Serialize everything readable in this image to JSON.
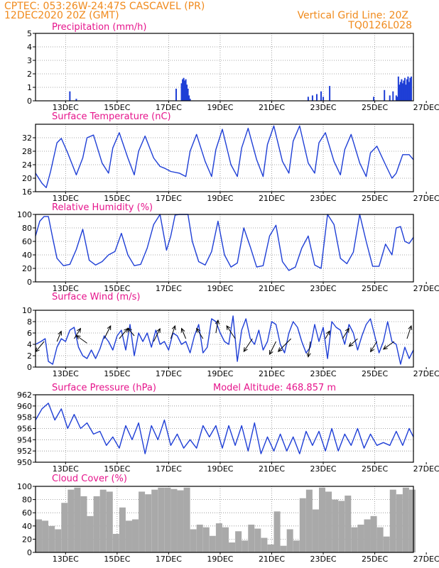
{
  "header": {
    "line1_left": "CPTEC:   053:26W-24:47S   CASCAVEL (PR)",
    "line2_left": "12DEC2020 20Z (GMT)",
    "line2_right": "Vertical Grid Line: 20Z",
    "line3_right": "TQ0126L028"
  },
  "colors": {
    "header": "#f08a1c",
    "title": "#e6158c",
    "series": "#1f3fd6",
    "bars": "#1f3fd6",
    "cloud": "#a9a9a9",
    "grid": "#8c8c8c",
    "arrows": "#000000"
  },
  "chart_data": [
    {
      "type": "bar",
      "title": "Precipitation (mm/h)",
      "ylim": [
        0,
        5
      ],
      "yticks": [
        "0",
        "1",
        "2",
        "3",
        "4",
        "5"
      ],
      "xticks": [
        "13DEC",
        "15DEC",
        "17DEC",
        "19DEC",
        "21DEC",
        "23DEC",
        "25DEC",
        "27DEC"
      ],
      "xlim_hours": [
        0,
        352
      ],
      "x_hours": [
        32,
        38,
        131,
        136,
        137,
        138,
        139,
        140,
        141,
        142,
        143,
        144,
        254,
        258,
        262,
        266,
        268,
        274,
        315,
        325,
        330,
        333,
        336,
        337,
        338,
        339,
        340,
        341,
        342,
        343,
        344,
        345,
        346,
        347,
        348,
        349,
        350
      ],
      "values": [
        0.7,
        0.15,
        0.9,
        1.3,
        1.6,
        1.7,
        1.5,
        1.6,
        1.2,
        0.9,
        0.4,
        0.15,
        0.3,
        0.4,
        0.5,
        0.7,
        0.3,
        1.1,
        0.3,
        0.8,
        0.4,
        0.7,
        0.4,
        0.3,
        1.8,
        1.2,
        1.4,
        1.6,
        1.3,
        1.5,
        1.7,
        1.2,
        1.6,
        1.8,
        1.4,
        1.7,
        1.8
      ],
      "grid": true
    },
    {
      "type": "line",
      "title": "Surface Temperature (nC)",
      "ylim": [
        16,
        36
      ],
      "yticks": [
        "16",
        "20",
        "24",
        "28",
        "32"
      ],
      "xticks": [
        "13DEC",
        "15DEC",
        "17DEC",
        "19DEC",
        "21DEC",
        "23DEC",
        "25DEC",
        "27DEC"
      ],
      "xlim_hours": [
        0,
        352
      ],
      "x_hours": [
        0,
        6,
        10,
        14,
        20,
        24,
        30,
        38,
        44,
        48,
        54,
        62,
        68,
        72,
        78,
        86,
        92,
        96,
        102,
        110,
        116,
        120,
        126,
        134,
        140,
        144,
        150,
        158,
        164,
        168,
        174,
        182,
        188,
        192,
        198,
        206,
        212,
        216,
        222,
        230,
        236,
        240,
        246,
        254,
        260,
        264,
        270,
        278,
        284,
        288,
        294,
        302,
        308,
        312,
        318,
        326,
        332,
        336,
        342,
        348,
        352
      ],
      "y_values": [
        21.5,
        18.5,
        17.2,
        22,
        30.5,
        31.8,
        27.5,
        21,
        26,
        32,
        32.8,
        24.5,
        21.5,
        29,
        33.5,
        26,
        21,
        28,
        32.5,
        26,
        23.5,
        23,
        22,
        21.5,
        20.5,
        28,
        33,
        25,
        20.5,
        28.5,
        34.5,
        24,
        20.5,
        29,
        34.8,
        25.5,
        20.5,
        30,
        35.5,
        25,
        21.5,
        31,
        35.5,
        24.5,
        21.5,
        30.5,
        33.5,
        25,
        21,
        28.5,
        33,
        24.5,
        20.5,
        27.5,
        29.5,
        24,
        20,
        21.5,
        27,
        27,
        25.5
      ],
      "grid": true
    },
    {
      "type": "line",
      "title": "Relative Humidity (%)",
      "ylim": [
        0,
        100
      ],
      "yticks": [
        "0",
        "20",
        "40",
        "60",
        "80",
        "100"
      ],
      "xticks": [
        "13DEC",
        "15DEC",
        "17DEC",
        "19DEC",
        "21DEC",
        "23DEC",
        "25DEC",
        "27DEC"
      ],
      "xlim_hours": [
        0,
        352
      ],
      "x_hours": [
        0,
        4,
        8,
        12,
        16,
        20,
        26,
        32,
        38,
        44,
        50,
        56,
        62,
        68,
        74,
        80,
        86,
        92,
        98,
        104,
        110,
        116,
        122,
        126,
        130,
        134,
        138,
        142,
        146,
        152,
        158,
        164,
        170,
        176,
        182,
        188,
        194,
        200,
        206,
        212,
        218,
        224,
        230,
        236,
        242,
        248,
        254,
        260,
        266,
        272,
        278,
        284,
        290,
        296,
        302,
        308,
        314,
        320,
        326,
        332,
        336,
        340,
        344,
        348,
        352
      ],
      "y_values": [
        68,
        90,
        97,
        97,
        65,
        35,
        24,
        26,
        48,
        78,
        32,
        25,
        30,
        40,
        45,
        72,
        40,
        24,
        26,
        50,
        85,
        100,
        47,
        68,
        99,
        100,
        100,
        100,
        60,
        30,
        25,
        45,
        90,
        40,
        22,
        28,
        80,
        52,
        22,
        24,
        68,
        84,
        30,
        17,
        22,
        50,
        68,
        25,
        20,
        100,
        85,
        35,
        27,
        44,
        100,
        60,
        23,
        23,
        56,
        40,
        80,
        82,
        60,
        57,
        66
      ],
      "grid": true
    },
    {
      "type": "line",
      "title": "Surface Wind (m/s)",
      "ylim": [
        0,
        10
      ],
      "yticks": [
        "0",
        "2",
        "4",
        "6",
        "8",
        "10"
      ],
      "xticks": [
        "13DEC",
        "15DEC",
        "17DEC",
        "19DEC",
        "21DEC",
        "23DEC",
        "25DEC",
        "27DEC"
      ],
      "xlim_hours": [
        0,
        352
      ],
      "x_hours": [
        0,
        5,
        9,
        12,
        16,
        20,
        24,
        28,
        32,
        36,
        40,
        44,
        48,
        52,
        56,
        60,
        64,
        68,
        72,
        76,
        80,
        84,
        88,
        92,
        96,
        100,
        104,
        108,
        112,
        116,
        120,
        124,
        128,
        132,
        136,
        140,
        144,
        148,
        152,
        156,
        160,
        164,
        168,
        172,
        176,
        180,
        184,
        188,
        192,
        196,
        200,
        204,
        208,
        212,
        216,
        220,
        224,
        228,
        232,
        236,
        240,
        244,
        248,
        252,
        256,
        260,
        264,
        268,
        272,
        276,
        280,
        284,
        288,
        292,
        296,
        300,
        304,
        308,
        312,
        316,
        320,
        324,
        328,
        332,
        336,
        340,
        344,
        348,
        352
      ],
      "y_values": [
        4,
        4.5,
        5,
        1,
        0.5,
        3.5,
        5,
        4.5,
        6.5,
        7,
        3.5,
        2,
        1.5,
        3,
        1.5,
        3.2,
        5.5,
        4.5,
        3,
        5.5,
        6.5,
        3,
        7.5,
        2,
        6,
        4.5,
        6,
        3.5,
        6.5,
        4,
        4.5,
        3,
        6,
        5.5,
        4,
        4.5,
        2.5,
        5.5,
        7.5,
        2.5,
        3.5,
        8.5,
        8,
        6,
        4.5,
        4,
        9,
        1,
        6.5,
        8.5,
        5,
        4,
        6.5,
        3,
        4.5,
        8,
        7.5,
        4,
        2.5,
        6,
        8,
        7,
        4.5,
        2.5,
        3.5,
        7.5,
        4.5,
        7,
        1.5,
        8,
        7,
        6.5,
        4,
        7.5,
        6,
        3,
        5.5,
        7.5,
        8.5,
        5.5,
        2.5,
        4.5,
        8,
        4.5,
        4,
        0.5,
        3.5,
        1.5,
        3
      ],
      "arrows": [
        {
          "x_hour": 8,
          "y": 4.5,
          "dx": -2,
          "dy": 4
        },
        {
          "x_hour": 20,
          "y": 4.5,
          "dx": 1,
          "dy": -4
        },
        {
          "x_hour": 36,
          "y": 5,
          "dx": 1.5,
          "dy": -4
        },
        {
          "x_hour": 48,
          "y": 4.2,
          "dx": -2.5,
          "dy": -3
        },
        {
          "x_hour": 64,
          "y": 5,
          "dx": 1.5,
          "dy": -5
        },
        {
          "x_hour": 78,
          "y": 5,
          "dx": 2,
          "dy": -4
        },
        {
          "x_hour": 92,
          "y": 5.5,
          "dx": -1.5,
          "dy": -3
        },
        {
          "x_hour": 110,
          "y": 4.5,
          "dx": 1.5,
          "dy": -5
        },
        {
          "x_hour": 126,
          "y": 5,
          "dx": 1,
          "dy": -5
        },
        {
          "x_hour": 140,
          "y": 5,
          "dx": -1,
          "dy": -4
        },
        {
          "x_hour": 156,
          "y": 5,
          "dx": -1.5,
          "dy": -4
        },
        {
          "x_hour": 168,
          "y": 6,
          "dx": 0.5,
          "dy": -5
        },
        {
          "x_hour": 186,
          "y": 5,
          "dx": -2,
          "dy": -5
        },
        {
          "x_hour": 202,
          "y": 5,
          "dx": -2,
          "dy": 5
        },
        {
          "x_hour": 224,
          "y": 4.5,
          "dx": -1.5,
          "dy": 5
        },
        {
          "x_hour": 238,
          "y": 5,
          "dx": -3,
          "dy": 5
        },
        {
          "x_hour": 256,
          "y": 4.5,
          "dx": -0.5,
          "dy": 6
        },
        {
          "x_hour": 270,
          "y": 5,
          "dx": 1,
          "dy": -3
        },
        {
          "x_hour": 286,
          "y": 5,
          "dx": 1.5,
          "dy": -4
        },
        {
          "x_hour": 300,
          "y": 5,
          "dx": -2,
          "dy": 3
        },
        {
          "x_hour": 318,
          "y": 4.5,
          "dx": -1.5,
          "dy": 4
        },
        {
          "x_hour": 334,
          "y": 4.5,
          "dx": -2.5,
          "dy": 3
        },
        {
          "x_hour": 346,
          "y": 5,
          "dx": 1,
          "dy": -5
        }
      ],
      "grid": true
    },
    {
      "type": "line",
      "title": "Surface Pressure (hPa)",
      "annotation": "Model Altitude: 468.857 m",
      "ylim": [
        950,
        962
      ],
      "yticks": [
        "950",
        "952",
        "954",
        "956",
        "958",
        "960",
        "962"
      ],
      "xticks": [
        "13DEC",
        "15DEC",
        "17DEC",
        "19DEC",
        "21DEC",
        "23DEC",
        "25DEC",
        "27DEC"
      ],
      "xlim_hours": [
        0,
        352
      ],
      "x_hours": [
        0,
        6,
        12,
        18,
        24,
        30,
        36,
        42,
        48,
        54,
        60,
        66,
        72,
        78,
        84,
        90,
        96,
        102,
        108,
        114,
        120,
        126,
        132,
        138,
        144,
        150,
        156,
        162,
        168,
        174,
        180,
        186,
        192,
        198,
        204,
        210,
        216,
        222,
        228,
        234,
        240,
        246,
        252,
        258,
        264,
        270,
        276,
        282,
        288,
        294,
        300,
        306,
        312,
        318,
        324,
        330,
        336,
        342,
        348,
        352
      ],
      "y_values": [
        957.5,
        959.5,
        960.5,
        957.5,
        959.5,
        956,
        958.5,
        956,
        957,
        955,
        955.5,
        953,
        954.5,
        952.5,
        956.5,
        954,
        957,
        951.5,
        956.5,
        954,
        957.5,
        953,
        955,
        952.5,
        954,
        952.5,
        956.5,
        954.5,
        956.5,
        952.5,
        956.5,
        953,
        956.5,
        952,
        957,
        951.5,
        954.5,
        952,
        955,
        952,
        954.5,
        951.5,
        955.5,
        953,
        955.5,
        952,
        956,
        952,
        955,
        953,
        956,
        952.5,
        955,
        953,
        953.5,
        953,
        955.5,
        953,
        956,
        954.5
      ],
      "grid": true
    },
    {
      "type": "bar",
      "title": "Cloud Cover (%)",
      "ylim": [
        0,
        100
      ],
      "yticks": [
        "0",
        "20",
        "40",
        "60",
        "80",
        "100"
      ],
      "xticks": [
        "13DEC",
        "15DEC",
        "17DEC",
        "19DEC",
        "21DEC",
        "23DEC",
        "25DEC",
        "27DEC"
      ],
      "xlim_hours": [
        0,
        352
      ],
      "x_hours": [
        0,
        6,
        12,
        18,
        24,
        30,
        36,
        42,
        48,
        54,
        60,
        66,
        72,
        78,
        84,
        90,
        96,
        102,
        108,
        114,
        120,
        126,
        132,
        138,
        144,
        150,
        156,
        162,
        168,
        174,
        180,
        186,
        192,
        198,
        204,
        210,
        216,
        222,
        228,
        234,
        240,
        246,
        252,
        258,
        264,
        270,
        276,
        282,
        288,
        294,
        300,
        306,
        312,
        318,
        324,
        330,
        336,
        342,
        348
      ],
      "values": [
        50,
        48,
        40,
        35,
        75,
        95,
        98,
        85,
        55,
        85,
        95,
        92,
        28,
        68,
        48,
        50,
        92,
        88,
        95,
        98,
        98,
        96,
        94,
        98,
        35,
        42,
        38,
        25,
        44,
        38,
        15,
        32,
        18,
        42,
        36,
        22,
        12,
        62,
        10,
        35,
        18,
        82,
        95,
        65,
        98,
        92,
        80,
        78,
        86,
        38,
        42,
        50,
        55,
        38,
        24,
        95,
        88,
        98,
        95
      ],
      "grid": true
    }
  ]
}
